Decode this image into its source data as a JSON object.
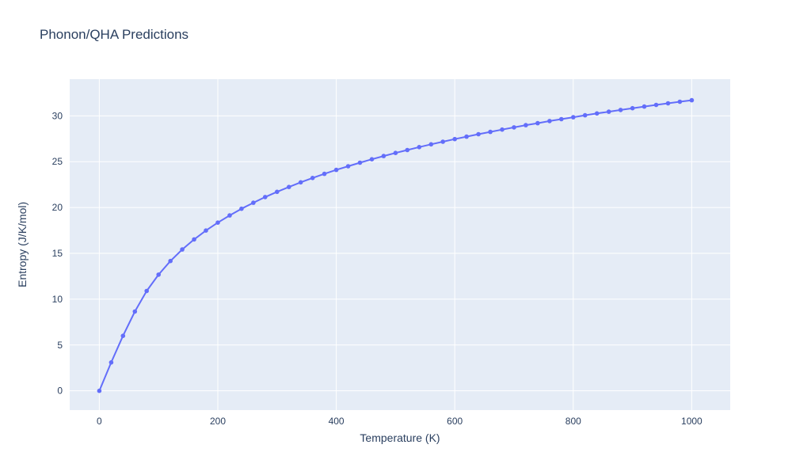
{
  "page": {
    "title": "Phonon/QHA Predictions"
  },
  "chart_data": {
    "type": "line",
    "title": "Phonon/QHA Predictions",
    "xlabel": "Temperature (K)",
    "ylabel": "Entropy (J/K/mol)",
    "legend": false,
    "grid": true,
    "markers": true,
    "line_color": "#636efa",
    "plot_bg": "#e5ecf6",
    "grid_color": "#ffffff",
    "axis_color": "#2a3f5f",
    "xlim": [
      -50,
      1065
    ],
    "ylim": [
      -2.1,
      34.0
    ],
    "xticks": [
      0,
      200,
      400,
      600,
      800,
      1000
    ],
    "yticks": [
      0,
      5,
      10,
      15,
      20,
      25,
      30
    ],
    "x": [
      0,
      20,
      40,
      60,
      80,
      100,
      120,
      140,
      160,
      180,
      200,
      220,
      240,
      260,
      280,
      300,
      320,
      340,
      360,
      380,
      400,
      420,
      440,
      460,
      480,
      500,
      520,
      540,
      560,
      580,
      600,
      620,
      640,
      660,
      680,
      700,
      720,
      740,
      760,
      780,
      800,
      820,
      840,
      860,
      880,
      900,
      920,
      940,
      960,
      980,
      1000
    ],
    "series": [
      {
        "name": "Entropy",
        "values": [
          0,
          3.1,
          6.0,
          8.65,
          10.9,
          12.68,
          14.16,
          15.42,
          16.52,
          17.49,
          18.35,
          19.14,
          19.86,
          20.52,
          21.14,
          21.71,
          22.24,
          22.75,
          23.22,
          23.67,
          24.1,
          24.5,
          24.89,
          25.26,
          25.61,
          25.95,
          26.27,
          26.59,
          26.89,
          27.18,
          27.46,
          27.73,
          28.0,
          28.25,
          28.5,
          28.74,
          28.98,
          29.2,
          29.43,
          29.64,
          29.85,
          30.06,
          30.26,
          30.45,
          30.64,
          30.83,
          31.01,
          31.19,
          31.37,
          31.54,
          31.7
        ]
      }
    ]
  }
}
